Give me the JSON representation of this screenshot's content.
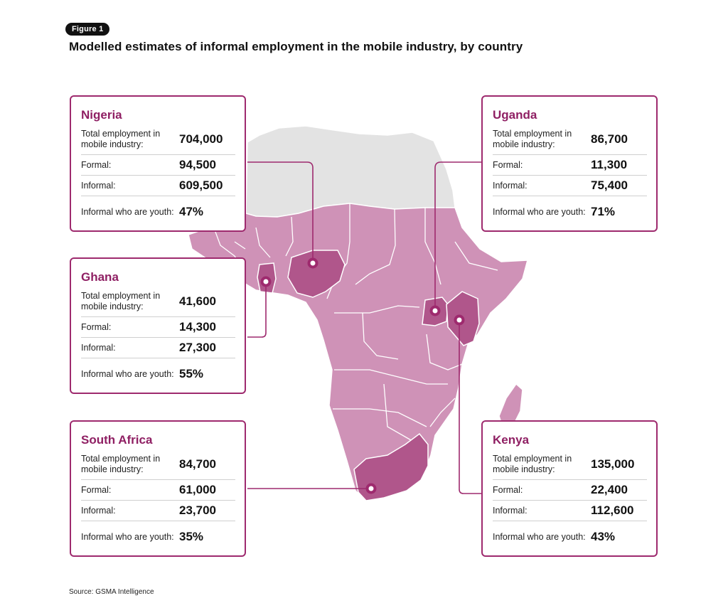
{
  "figure_label": "Figure 1",
  "title": "Modelled estimates of informal employment in the mobile industry, by country",
  "source": "Source: GSMA Intelligence",
  "colors": {
    "accent": "#9e2a6e",
    "country_highlight": "#b0568b",
    "country_fill": "#cf92b7",
    "non_data_fill": "#e3e3e3",
    "border": "#ffffff"
  },
  "row_labels": {
    "total": "Total employment in mobile industry:",
    "formal": "Formal:",
    "informal": "Informal:",
    "youth": "Informal who are youth:"
  },
  "countries": {
    "nigeria": {
      "name": "Nigeria",
      "total": "704,000",
      "formal": "94,500",
      "informal": "609,500",
      "youth": "47%"
    },
    "ghana": {
      "name": "Ghana",
      "total": "41,600",
      "formal": "14,300",
      "informal": "27,300",
      "youth": "55%"
    },
    "south_africa": {
      "name": "South Africa",
      "total": "84,700",
      "formal": "61,000",
      "informal": "23,700",
      "youth": "35%"
    },
    "uganda": {
      "name": "Uganda",
      "total": "86,700",
      "formal": "11,300",
      "informal": "75,400",
      "youth": "71%"
    },
    "kenya": {
      "name": "Kenya",
      "total": "135,000",
      "formal": "22,400",
      "informal": "112,600",
      "youth": "43%"
    }
  }
}
